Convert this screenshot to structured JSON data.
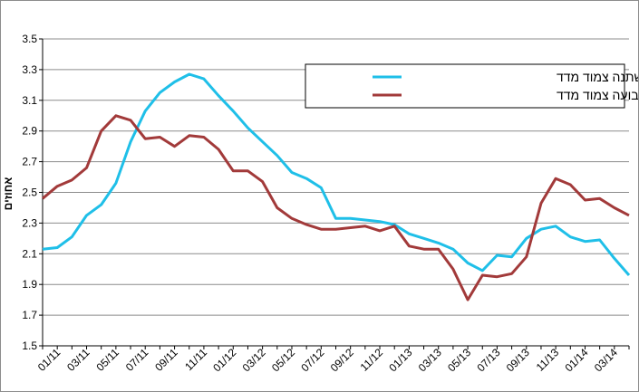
{
  "chart_data": {
    "type": "line",
    "title": "",
    "xlabel": "",
    "ylabel": "אחוזים",
    "ylim": [
      1.5,
      3.5
    ],
    "yticks": [
      "1.5",
      "1.7",
      "1.9",
      "2.1",
      "2.3",
      "2.5",
      "2.7",
      "2.9",
      "3.1",
      "3.3",
      "3.5"
    ],
    "x_tick_labels": [
      "01/11",
      "03/11",
      "05/11",
      "07/11",
      "09/11",
      "11/11",
      "01/12",
      "03/12",
      "05/12",
      "07/12",
      "09/12",
      "11/12",
      "01/13",
      "03/13",
      "05/13",
      "07/13",
      "09/13",
      "11/13",
      "01/14",
      "03/14"
    ],
    "grid": "horizontal",
    "legend_position": "top-right",
    "x": [
      "12/10",
      "01/11",
      "02/11",
      "03/11",
      "04/11",
      "05/11",
      "06/11",
      "07/11",
      "08/11",
      "09/11",
      "10/11",
      "11/11",
      "12/11",
      "01/12",
      "02/12",
      "03/12",
      "04/12",
      "05/12",
      "06/12",
      "07/12",
      "08/12",
      "09/12",
      "10/12",
      "11/12",
      "12/12",
      "01/13",
      "02/13",
      "03/13",
      "04/13",
      "05/13",
      "06/13",
      "07/13",
      "08/13",
      "09/13",
      "10/13",
      "11/13",
      "12/13",
      "01/14",
      "02/14",
      "03/14",
      "04/14"
    ],
    "series": [
      {
        "name": "סך ריבית משתנה צמוד מדד",
        "color": "#1fbfe8",
        "values": [
          2.13,
          2.14,
          2.21,
          2.35,
          2.42,
          2.56,
          2.83,
          3.03,
          3.15,
          3.22,
          3.27,
          3.24,
          3.13,
          3.03,
          2.92,
          2.83,
          2.74,
          2.63,
          2.59,
          2.53,
          2.33,
          2.33,
          2.32,
          2.31,
          2.29,
          2.23,
          2.2,
          2.17,
          2.13,
          2.04,
          1.99,
          2.09,
          2.08,
          2.2,
          2.26,
          2.28,
          2.21,
          2.18,
          2.19,
          2.07,
          1.96
        ]
      },
      {
        "name": "ריבית קבועה צמוד מדד",
        "color": "#a23a3a",
        "values": [
          2.46,
          2.54,
          2.58,
          2.66,
          2.9,
          3.0,
          2.97,
          2.85,
          2.86,
          2.8,
          2.87,
          2.86,
          2.78,
          2.64,
          2.64,
          2.57,
          2.4,
          2.33,
          2.29,
          2.26,
          2.26,
          2.27,
          2.28,
          2.25,
          2.28,
          2.15,
          2.13,
          2.13,
          2.0,
          1.8,
          1.96,
          1.95,
          1.97,
          2.08,
          2.43,
          2.59,
          2.55,
          2.45,
          2.46,
          2.4,
          2.35
        ]
      }
    ]
  }
}
